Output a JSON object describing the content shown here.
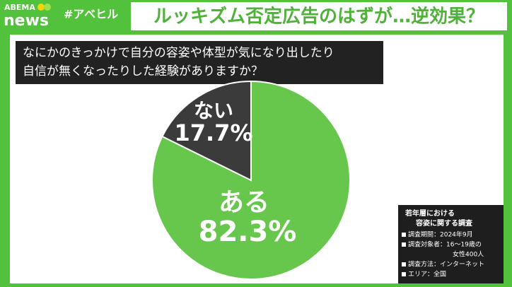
{
  "header": {
    "logo_top": "ABEMA",
    "logo_bottom": "news",
    "hashtag": "#アベヒル",
    "headline": "ルッキズム否定広告のはずが…逆効果？"
  },
  "chart_data": {
    "type": "pie",
    "title_lines": [
      "なにかのきっかけで自分の容姿や体型が気になり出したり",
      "自信が無くなったりした経験がありますか？"
    ],
    "categories": [
      "ある",
      "ない"
    ],
    "values": [
      82.3,
      17.7
    ],
    "value_labels": [
      "82.3%",
      "17.7%"
    ],
    "colors": [
      "#66c74c",
      "#3b3b3b"
    ]
  },
  "note": {
    "title_lines": [
      "若年層における",
      "容姿に関する調査"
    ],
    "items": [
      [
        "調査期間：2024年9月"
      ],
      [
        "調査対象者：16～19歳の",
        "女性400人"
      ],
      [
        "調査方法：インターネット"
      ],
      [
        "エリア：全国"
      ]
    ]
  }
}
